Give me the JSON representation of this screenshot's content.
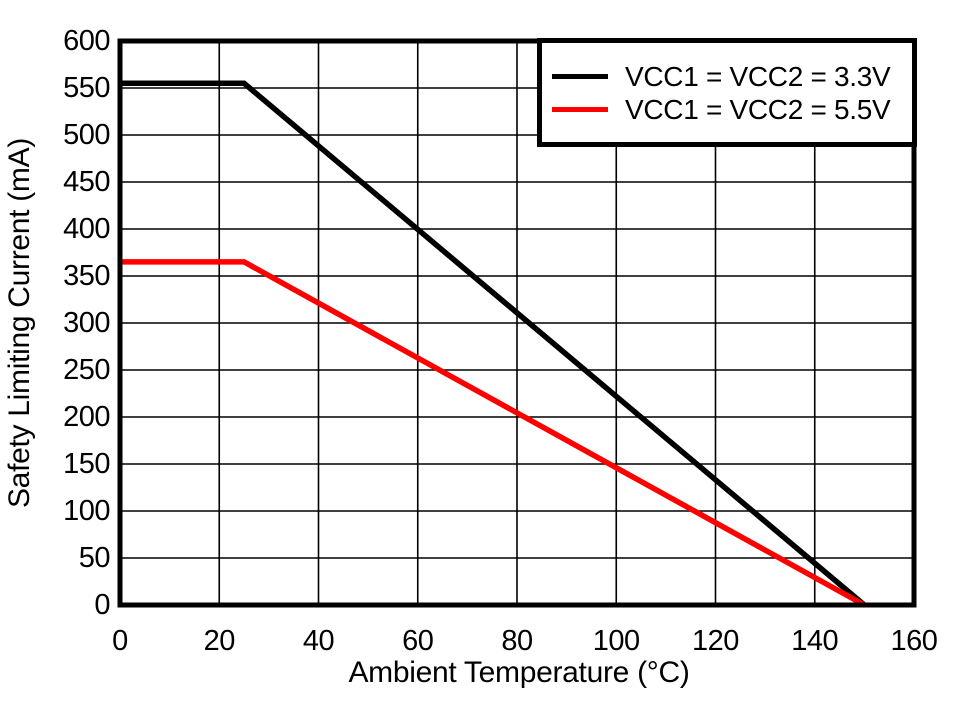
{
  "chart_data": {
    "type": "line",
    "xlabel": "Ambient Temperature (°C)",
    "ylabel": "Safety Limiting Current (mA)",
    "xlim": [
      0,
      160
    ],
    "ylim": [
      0,
      600
    ],
    "xticks": [
      0,
      20,
      40,
      60,
      80,
      100,
      120,
      140,
      160
    ],
    "yticks": [
      0,
      50,
      100,
      150,
      200,
      250,
      300,
      350,
      400,
      450,
      500,
      550,
      600
    ],
    "grid": true,
    "legend_position": "top-right",
    "series": [
      {
        "name": "VCC1 = VCC2 = 3.3V",
        "color": "#000000",
        "points": [
          [
            0,
            555
          ],
          [
            25,
            555
          ],
          [
            150,
            0
          ]
        ]
      },
      {
        "name": "VCC1 = VCC2 = 5.5V",
        "color": "#ff0000",
        "points": [
          [
            0,
            365
          ],
          [
            25,
            365
          ],
          [
            150,
            0
          ]
        ]
      }
    ]
  },
  "colors": {
    "axis": "#000000",
    "grid": "#000000",
    "background": "#ffffff"
  }
}
